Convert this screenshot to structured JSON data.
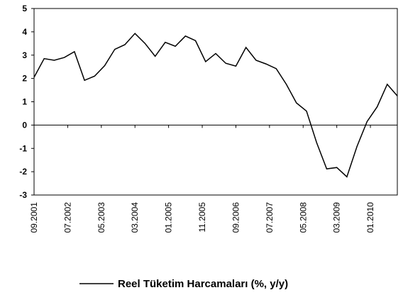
{
  "chart_data": {
    "type": "line",
    "x": [
      "09.2001",
      "12.2001",
      "03.2002",
      "06.2002",
      "09.2002",
      "12.2002",
      "03.2003",
      "06.2003",
      "09.2003",
      "12.2003",
      "03.2004",
      "06.2004",
      "09.2004",
      "12.2004",
      "03.2005",
      "06.2005",
      "09.2005",
      "12.2005",
      "03.2006",
      "06.2006",
      "09.2006",
      "12.2006",
      "03.2007",
      "06.2007",
      "09.2007",
      "12.2007",
      "03.2008",
      "06.2008",
      "09.2008",
      "12.2008",
      "03.2009",
      "06.2009",
      "09.2009",
      "12.2009",
      "03.2010",
      "06.2010",
      "09.2010"
    ],
    "series": [
      {
        "name": "Reel Tüketim Harcamaları (%, y/y)",
        "color": "#000000",
        "values": [
          2.05,
          2.85,
          2.78,
          2.9,
          3.15,
          1.92,
          2.1,
          2.55,
          3.25,
          3.45,
          3.93,
          3.5,
          2.95,
          3.55,
          3.38,
          3.82,
          3.62,
          2.72,
          3.07,
          2.65,
          2.53,
          3.33,
          2.78,
          2.62,
          2.42,
          1.75,
          0.95,
          0.6,
          -0.75,
          -1.88,
          -1.82,
          -2.22,
          -0.92,
          0.15,
          0.78,
          1.75,
          1.25
        ]
      }
    ],
    "xlim": [
      "09.2001",
      "09.2010"
    ],
    "xticks": [
      "09.2001",
      "07.2002",
      "05.2003",
      "03.2004",
      "01.2005",
      "11.2005",
      "09.2006",
      "07.2007",
      "05.2008",
      "03.2009",
      "01.2010"
    ],
    "ylim": [
      -3,
      5
    ],
    "yticks": [
      -3,
      -2,
      -1,
      0,
      1,
      2,
      3,
      4,
      5
    ],
    "legend": "bottom"
  }
}
